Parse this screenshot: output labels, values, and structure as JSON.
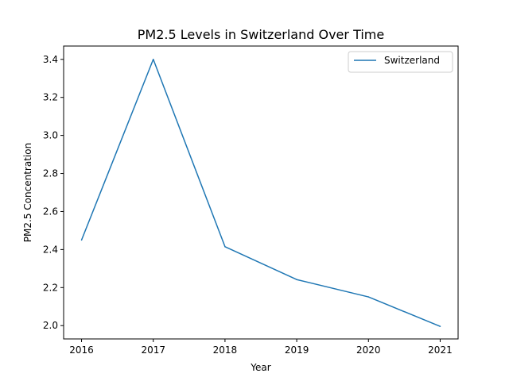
{
  "chart_data": {
    "type": "line",
    "title": "PM2.5 Levels in Switzerland Over Time",
    "xlabel": "Year",
    "ylabel": "PM2.5 Concentration",
    "x": [
      2016,
      2017,
      2018,
      2019,
      2020,
      2021
    ],
    "x_tick_labels": [
      "2016",
      "2017",
      "2018",
      "2019",
      "2020",
      "2021"
    ],
    "y_ticks": [
      2.0,
      2.2,
      2.4,
      2.6,
      2.8,
      3.0,
      3.2,
      3.4
    ],
    "y_tick_labels": [
      "2.0",
      "2.2",
      "2.4",
      "2.6",
      "2.8",
      "3.0",
      "3.2",
      "3.4"
    ],
    "xlim": [
      2015.75,
      2021.25
    ],
    "ylim": [
      1.93,
      3.47
    ],
    "grid": false,
    "legend_position": "top-right",
    "series": [
      {
        "name": "Switzerland",
        "color": "#1f77b4",
        "values": [
          2.45,
          3.4,
          2.415,
          2.242,
          2.151,
          1.996
        ]
      }
    ]
  }
}
